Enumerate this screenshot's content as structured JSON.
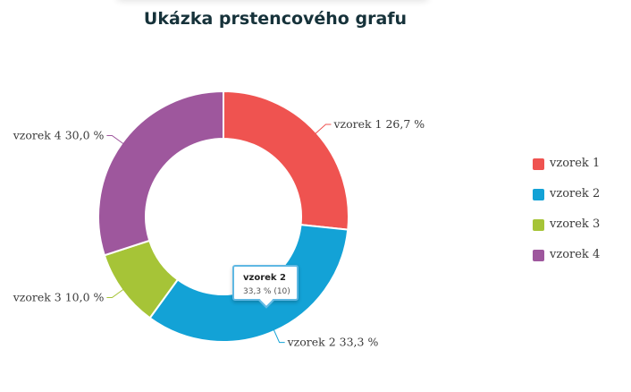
{
  "chart_data": {
    "type": "pie",
    "title": "Ukázka prstencového grafu",
    "slices": [
      {
        "name": "vzorek 1",
        "value": 8,
        "percent_label": "26,7 %",
        "color": "#ef5350"
      },
      {
        "name": "vzorek 2",
        "value": 10,
        "percent_label": "33,3 %",
        "color": "#13a2d6"
      },
      {
        "name": "vzorek 3",
        "value": 3,
        "percent_label": "10,0 %",
        "color": "#a6c437"
      },
      {
        "name": "vzorek 4",
        "value": 9,
        "percent_label": "30,0 %",
        "color": "#9e579d"
      }
    ],
    "legend_position": "right",
    "donut": true
  },
  "tooltip": {
    "title": "vzorek 2",
    "value": "33,3 % (10)"
  }
}
